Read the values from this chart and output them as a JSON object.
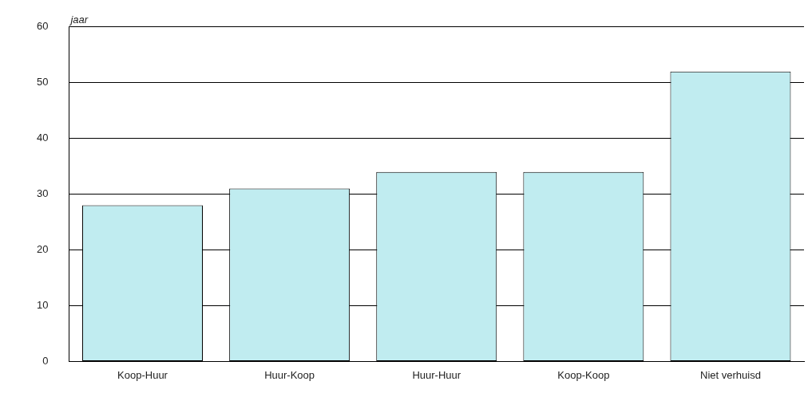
{
  "chart_data": {
    "type": "bar",
    "ylabel": "jaar",
    "categories": [
      "Koop-Huur",
      "Huur-Koop",
      "Huur-Huur",
      "Koop-Koop",
      "Niet verhuisd"
    ],
    "values": [
      28,
      31,
      34,
      34,
      52
    ],
    "color": "#c0ecf0",
    "ylim": [
      0,
      60
    ],
    "yticks": [
      0,
      10,
      20,
      30,
      40,
      50,
      60
    ],
    "grid": "y",
    "legend": false
  }
}
